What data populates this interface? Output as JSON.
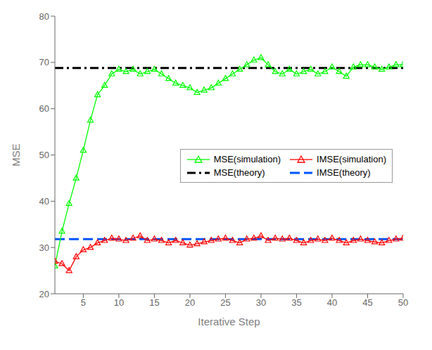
{
  "chart_data": {
    "type": "line",
    "xlabel": "Iterative Step",
    "ylabel": "MSE",
    "x": [
      1,
      2,
      3,
      4,
      5,
      6,
      7,
      8,
      9,
      10,
      11,
      12,
      13,
      14,
      15,
      16,
      17,
      18,
      19,
      20,
      21,
      22,
      23,
      24,
      25,
      26,
      27,
      28,
      29,
      30,
      31,
      32,
      33,
      34,
      35,
      36,
      37,
      38,
      39,
      40,
      41,
      42,
      43,
      44,
      45,
      46,
      47,
      48,
      49,
      50
    ],
    "xlim": [
      1,
      50
    ],
    "ylim": [
      20,
      80
    ],
    "xticks": [
      5,
      10,
      15,
      20,
      25,
      30,
      35,
      40,
      45,
      50
    ],
    "yticks": [
      20,
      30,
      40,
      50,
      60,
      70,
      80
    ],
    "grid": false,
    "legend": "center right",
    "series": [
      {
        "name": "MSE(simulation)",
        "type": "line",
        "color": "#00FF00",
        "marker": "triangle",
        "line_style": "solid",
        "values": [
          26.0,
          33.5,
          39.5,
          45.0,
          51.0,
          57.5,
          63.0,
          65.0,
          67.5,
          68.5,
          68.0,
          68.5,
          67.5,
          68.0,
          68.5,
          67.5,
          66.5,
          65.5,
          65.0,
          64.5,
          63.5,
          64.0,
          64.5,
          65.5,
          66.5,
          67.5,
          68.5,
          69.5,
          70.5,
          71.0,
          69.5,
          68.0,
          67.5,
          68.5,
          67.5,
          68.0,
          68.5,
          67.5,
          68.0,
          69.0,
          68.0,
          67.0,
          69.0,
          69.5,
          69.5,
          69.0,
          68.5,
          69.0,
          69.5,
          69.5
        ]
      },
      {
        "name": "IMSE(simulation)",
        "type": "line",
        "color": "#FF0000",
        "marker": "triangle",
        "line_style": "solid",
        "values": [
          27.0,
          26.5,
          25.0,
          28.0,
          29.5,
          30.0,
          31.0,
          31.5,
          32.0,
          31.8,
          31.5,
          32.0,
          32.5,
          31.5,
          31.8,
          31.5,
          31.0,
          31.5,
          31.0,
          30.5,
          30.8,
          31.2,
          31.5,
          31.8,
          32.0,
          31.5,
          31.0,
          31.8,
          32.0,
          32.5,
          31.5,
          32.0,
          31.8,
          32.0,
          31.5,
          31.0,
          31.5,
          31.8,
          31.5,
          32.0,
          31.5,
          31.0,
          31.5,
          31.8,
          31.5,
          31.2,
          31.0,
          31.5,
          31.8,
          32.0
        ]
      },
      {
        "name": "MSE(theory)",
        "type": "hline",
        "color": "#000000",
        "line_style": "dashdot",
        "y": 68.8
      },
      {
        "name": "IMSE(theory)",
        "type": "hline",
        "color": "#0055FF",
        "line_style": "dashed",
        "y": 31.8
      }
    ]
  }
}
